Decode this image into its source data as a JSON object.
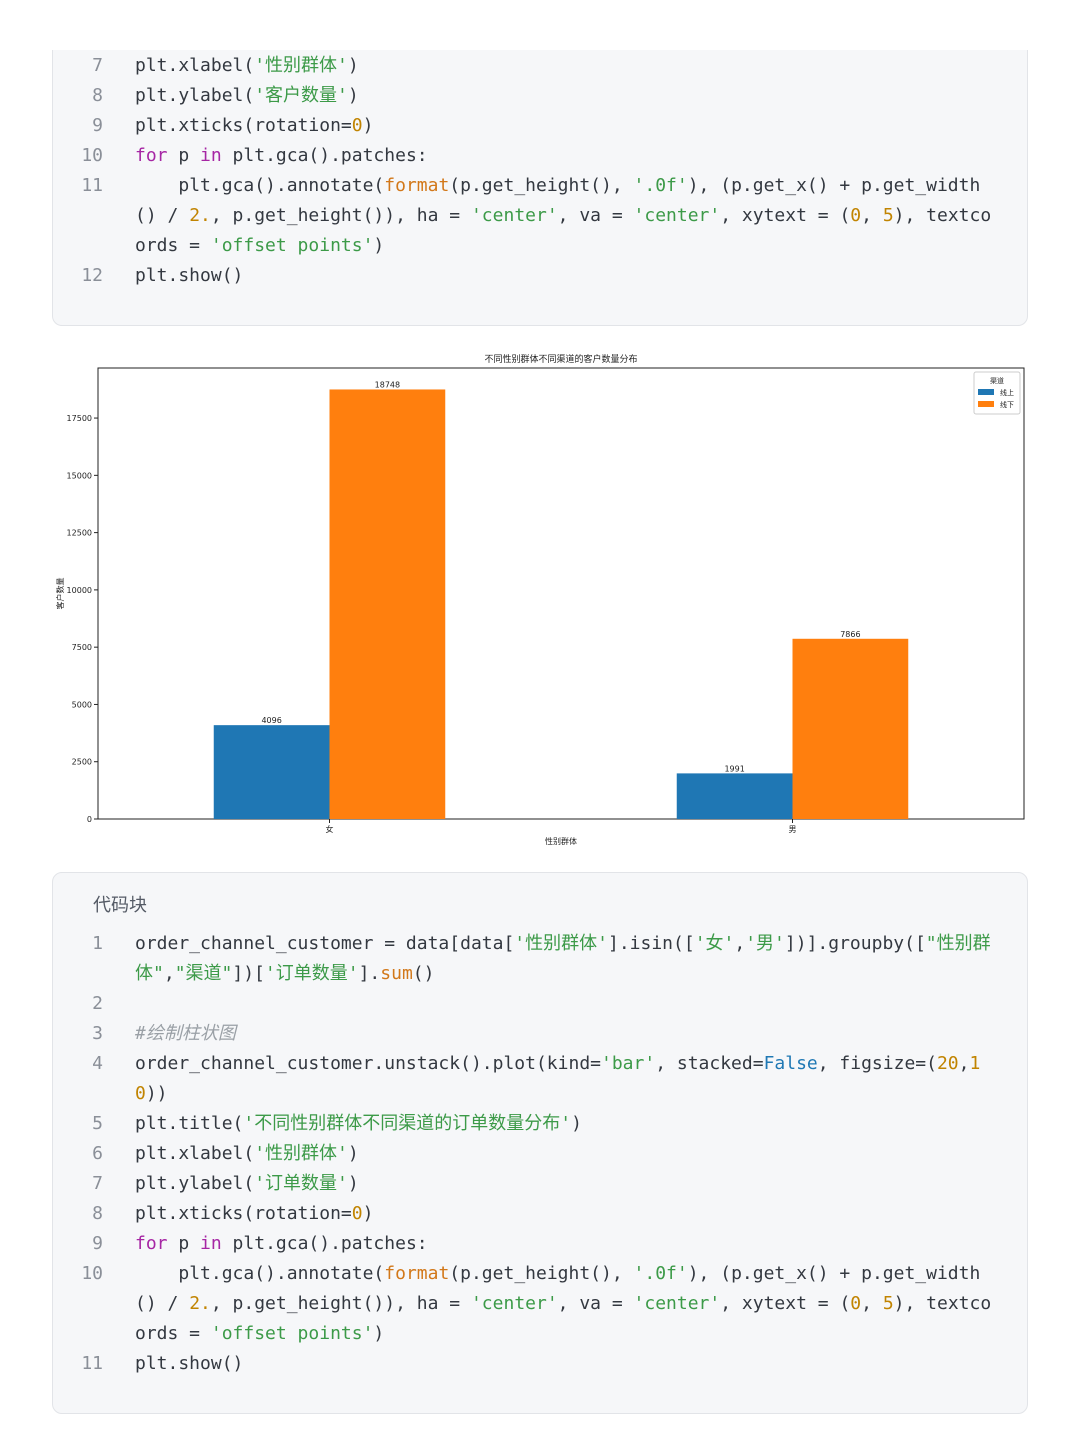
{
  "code_block_1": {
    "lines": [
      {
        "no": "7",
        "tokens": [
          {
            "t": "plt.xlabel(",
            "c": "p"
          },
          {
            "t": "'性别群体'",
            "c": "s"
          },
          {
            "t": ")",
            "c": "p"
          }
        ]
      },
      {
        "no": "8",
        "tokens": [
          {
            "t": "plt.ylabel(",
            "c": "p"
          },
          {
            "t": "'客户数量'",
            "c": "s"
          },
          {
            "t": ")",
            "c": "p"
          }
        ]
      },
      {
        "no": "9",
        "tokens": [
          {
            "t": "plt.xticks(rotation=",
            "c": "p"
          },
          {
            "t": "0",
            "c": "n"
          },
          {
            "t": ")",
            "c": "p"
          }
        ]
      },
      {
        "no": "10",
        "tokens": [
          {
            "t": "for",
            "c": "k"
          },
          {
            "t": " p ",
            "c": "p"
          },
          {
            "t": "in",
            "c": "k"
          },
          {
            "t": " plt.gca().patches:",
            "c": "p"
          }
        ]
      },
      {
        "no": "11",
        "tokens": [
          {
            "t": "    plt.gca().annotate(",
            "c": "p"
          },
          {
            "t": "format",
            "c": "f"
          },
          {
            "t": "(p.get_height(), ",
            "c": "p"
          },
          {
            "t": "'.0f'",
            "c": "s"
          },
          {
            "t": "), (p.get_x() + p.get_width() / ",
            "c": "p"
          },
          {
            "t": "2.",
            "c": "n"
          },
          {
            "t": ", p.get_height()), ha = ",
            "c": "p"
          },
          {
            "t": "'center'",
            "c": "s"
          },
          {
            "t": ", va = ",
            "c": "p"
          },
          {
            "t": "'center'",
            "c": "s"
          },
          {
            "t": ", xytext = (",
            "c": "p"
          },
          {
            "t": "0",
            "c": "n"
          },
          {
            "t": ", ",
            "c": "p"
          },
          {
            "t": "5",
            "c": "n"
          },
          {
            "t": "), textcoords = ",
            "c": "p"
          },
          {
            "t": "'offset points'",
            "c": "s"
          },
          {
            "t": ")",
            "c": "p"
          }
        ],
        "rows": 3
      },
      {
        "no": "12",
        "tokens": [
          {
            "t": "plt.show()",
            "c": "p"
          }
        ]
      }
    ]
  },
  "chart_data": {
    "type": "bar",
    "title": "不同性别群体不同渠道的客户数量分布",
    "xlabel": "性别群体",
    "ylabel": "客户数量",
    "categories": [
      "女",
      "男"
    ],
    "series": [
      {
        "name": "线上",
        "values": [
          4096,
          1991
        ],
        "color": "#1f77b4"
      },
      {
        "name": "线下",
        "values": [
          18748,
          7866
        ],
        "color": "#ff7f0e"
      }
    ],
    "yticks": [
      0,
      2500,
      5000,
      7500,
      10000,
      12500,
      15000,
      17500
    ],
    "ylim": [
      0,
      19685
    ],
    "legend": {
      "title": "渠道",
      "placement": "top-right"
    },
    "grid": false
  },
  "code_block_2": {
    "title": "代码块",
    "lines": [
      {
        "no": "1",
        "tokens": [
          {
            "t": "order_channel_customer = data[data[",
            "c": "p"
          },
          {
            "t": "'性别群体'",
            "c": "s"
          },
          {
            "t": "].isin([",
            "c": "p"
          },
          {
            "t": "'女'",
            "c": "s"
          },
          {
            "t": ",",
            "c": "p"
          },
          {
            "t": "'男'",
            "c": "s"
          },
          {
            "t": "])].groupby([",
            "c": "p"
          },
          {
            "t": "\"性别群体\"",
            "c": "s"
          },
          {
            "t": ",",
            "c": "p"
          },
          {
            "t": "\"渠道\"",
            "c": "s"
          },
          {
            "t": "])[",
            "c": "p"
          },
          {
            "t": "'订单数量'",
            "c": "s"
          },
          {
            "t": "].",
            "c": "p"
          },
          {
            "t": "sum",
            "c": "f"
          },
          {
            "t": "()",
            "c": "p"
          }
        ],
        "rows": 2
      },
      {
        "no": "2",
        "tokens": [
          {
            "t": "",
            "c": "p"
          }
        ]
      },
      {
        "no": "3",
        "tokens": [
          {
            "t": "#绘制柱状图",
            "c": "c"
          }
        ]
      },
      {
        "no": "4",
        "tokens": [
          {
            "t": "order_channel_customer.unstack().plot(kind=",
            "c": "p"
          },
          {
            "t": "'bar'",
            "c": "s"
          },
          {
            "t": ", stacked=",
            "c": "p"
          },
          {
            "t": "False",
            "c": "b"
          },
          {
            "t": ", figsize=(",
            "c": "p"
          },
          {
            "t": "20",
            "c": "n"
          },
          {
            "t": ",",
            "c": "p"
          },
          {
            "t": "10",
            "c": "n"
          },
          {
            "t": "))",
            "c": "p"
          }
        ],
        "rows": 2
      },
      {
        "no": "5",
        "tokens": [
          {
            "t": "plt.title(",
            "c": "p"
          },
          {
            "t": "'不同性别群体不同渠道的订单数量分布'",
            "c": "s"
          },
          {
            "t": ")",
            "c": "p"
          }
        ]
      },
      {
        "no": "6",
        "tokens": [
          {
            "t": "plt.xlabel(",
            "c": "p"
          },
          {
            "t": "'性别群体'",
            "c": "s"
          },
          {
            "t": ")",
            "c": "p"
          }
        ]
      },
      {
        "no": "7",
        "tokens": [
          {
            "t": "plt.ylabel(",
            "c": "p"
          },
          {
            "t": "'订单数量'",
            "c": "s"
          },
          {
            "t": ")",
            "c": "p"
          }
        ]
      },
      {
        "no": "8",
        "tokens": [
          {
            "t": "plt.xticks(rotation=",
            "c": "p"
          },
          {
            "t": "0",
            "c": "n"
          },
          {
            "t": ")",
            "c": "p"
          }
        ]
      },
      {
        "no": "9",
        "tokens": [
          {
            "t": "for",
            "c": "k"
          },
          {
            "t": " p ",
            "c": "p"
          },
          {
            "t": "in",
            "c": "k"
          },
          {
            "t": " plt.gca().patches:",
            "c": "p"
          }
        ]
      },
      {
        "no": "10",
        "tokens": [
          {
            "t": "    plt.gca().annotate(",
            "c": "p"
          },
          {
            "t": "format",
            "c": "f"
          },
          {
            "t": "(p.get_height(), ",
            "c": "p"
          },
          {
            "t": "'.0f'",
            "c": "s"
          },
          {
            "t": "), (p.get_x() + p.get_width() / ",
            "c": "p"
          },
          {
            "t": "2.",
            "c": "n"
          },
          {
            "t": ", p.get_height()), ha = ",
            "c": "p"
          },
          {
            "t": "'center'",
            "c": "s"
          },
          {
            "t": ", va = ",
            "c": "p"
          },
          {
            "t": "'center'",
            "c": "s"
          },
          {
            "t": ", xytext = (",
            "c": "p"
          },
          {
            "t": "0",
            "c": "n"
          },
          {
            "t": ", ",
            "c": "p"
          },
          {
            "t": "5",
            "c": "n"
          },
          {
            "t": "), textcoords = ",
            "c": "p"
          },
          {
            "t": "'offset points'",
            "c": "s"
          },
          {
            "t": ")",
            "c": "p"
          }
        ],
        "rows": 3
      },
      {
        "no": "11",
        "tokens": [
          {
            "t": "plt.show()",
            "c": "p"
          }
        ]
      }
    ]
  }
}
